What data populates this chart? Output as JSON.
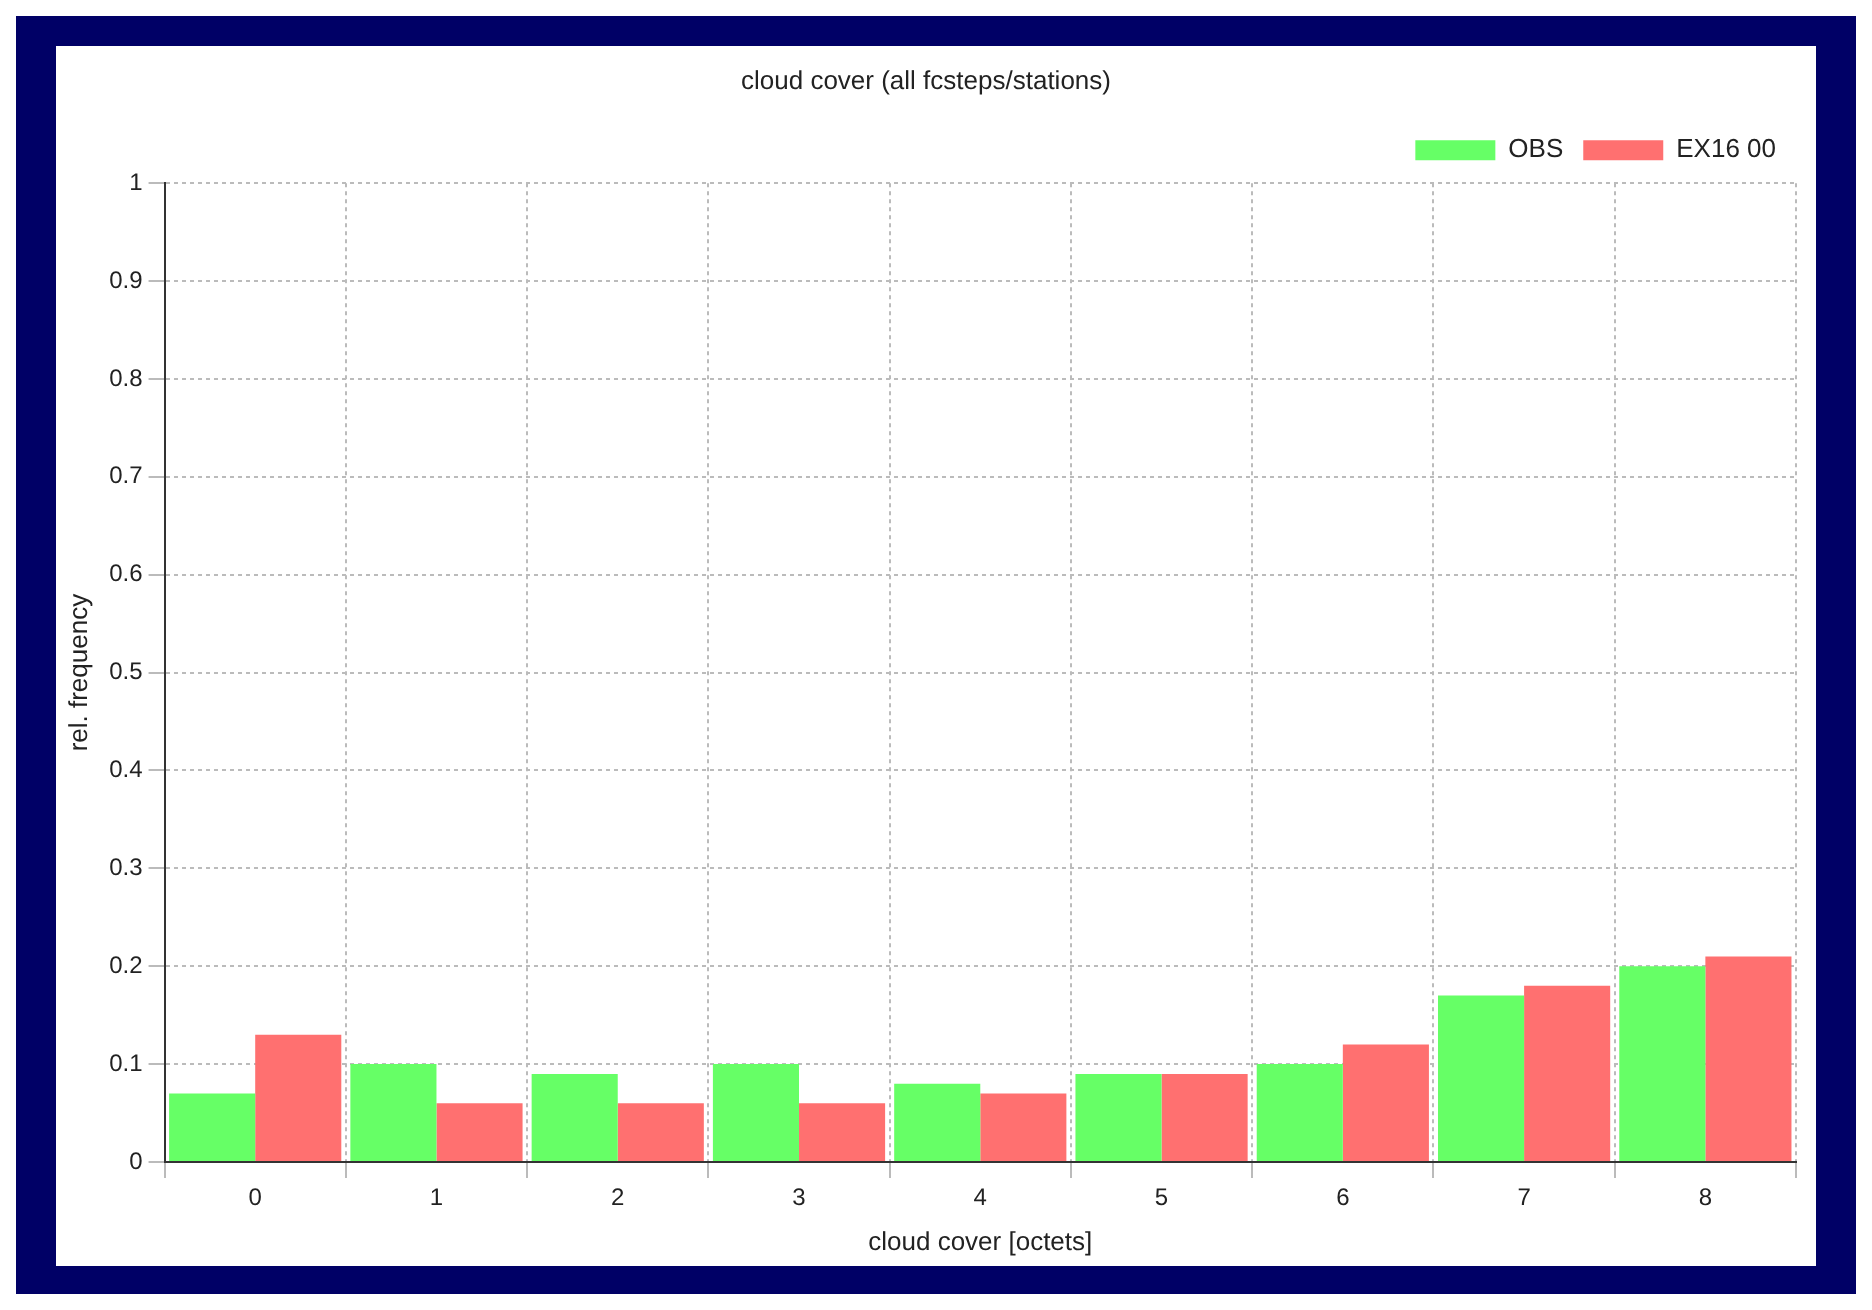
{
  "chart_data": {
    "type": "bar",
    "title": "cloud cover (all fcsteps/stations)",
    "xlabel": "cloud cover [octets]",
    "ylabel": "rel. frequency",
    "categories": [
      "0",
      "1",
      "2",
      "3",
      "4",
      "5",
      "6",
      "7",
      "8"
    ],
    "series": [
      {
        "name": "OBS",
        "color": "#66ff66",
        "values": [
          0.07,
          0.1,
          0.09,
          0.1,
          0.08,
          0.09,
          0.1,
          0.17,
          0.2
        ]
      },
      {
        "name": "EX16 00",
        "color": "#ff7070",
        "values": [
          0.13,
          0.06,
          0.06,
          0.06,
          0.07,
          0.09,
          0.12,
          0.18,
          0.21
        ]
      }
    ],
    "ylim": [
      0,
      1
    ],
    "yticks": [
      0,
      0.1,
      0.2,
      0.3,
      0.4,
      0.5,
      0.6,
      0.7,
      0.8,
      0.9,
      1
    ],
    "grid": true,
    "legend": "top right"
  }
}
